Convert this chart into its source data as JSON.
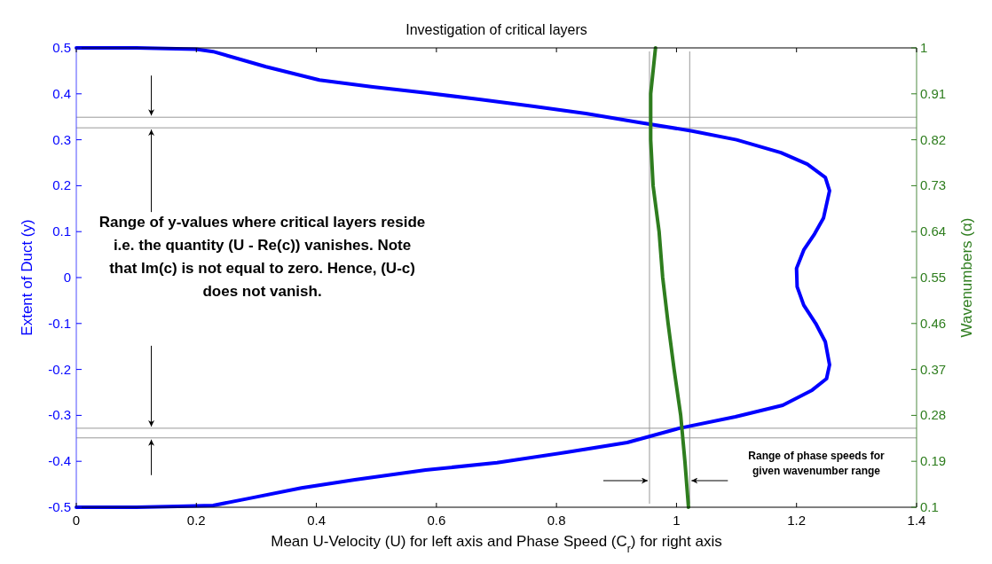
{
  "chart_data": {
    "type": "line",
    "title": "Investigation of critical layers",
    "xlabel": "Mean U-Velocity (U) for left axis and Phase Speed (C$_{r}$) for right axis",
    "ylabel": "Extent of Duct (y)",
    "y2label": "Wavenumbers (α)",
    "xlim": [
      0,
      1.4
    ],
    "xticks": [
      0,
      0.2,
      0.4,
      0.6,
      0.8,
      1,
      1.2,
      1.4
    ],
    "ylim": [
      -0.5,
      0.5
    ],
    "yticks": [
      -0.5,
      -0.4,
      -0.3,
      -0.2,
      -0.1,
      0,
      0.1,
      0.2,
      0.3,
      0.4,
      0.5
    ],
    "y2lim": [
      0.1,
      1
    ],
    "y2ticks": [
      0.1,
      0.19,
      0.28,
      0.37,
      0.46,
      0.55,
      0.64,
      0.73,
      0.82,
      0.91,
      1
    ],
    "series": [
      {
        "color": "#0000ff",
        "x": [
          0,
          0.1,
          0.2,
          0.228,
          0.316,
          0.405,
          0.494,
          0.583,
          0.671,
          0.76,
          0.849,
          0.937,
          1.026,
          1.1,
          1.174,
          1.218,
          1.248,
          1.255,
          1.245,
          1.23,
          1.212,
          1.2,
          1.201,
          1.212,
          1.232,
          1.248,
          1.255,
          1.25,
          1.226,
          1.177,
          1.098,
          1.005,
          0.918,
          0.819,
          0.701,
          0.582,
          0.464,
          0.375,
          0.287,
          0.228,
          0.169,
          0.1,
          0
        ],
        "values": [
          0.5,
          0.5,
          0.497,
          0.492,
          0.459,
          0.43,
          0.415,
          0.402,
          0.388,
          0.373,
          0.357,
          0.338,
          0.319,
          0.3,
          0.272,
          0.247,
          0.218,
          0.189,
          0.13,
          0.095,
          0.06,
          0.02,
          -0.02,
          -0.06,
          -0.1,
          -0.14,
          -0.19,
          -0.22,
          -0.245,
          -0.278,
          -0.303,
          -0.328,
          -0.359,
          -0.38,
          -0.403,
          -0.419,
          -0.44,
          -0.458,
          -0.481,
          -0.496,
          -0.498,
          -0.5,
          -0.5
        ]
      },
      {
        "color": "#2e7d1e",
        "axis": "y2",
        "x": [
          0.965,
          0.957,
          0.957,
          0.961,
          0.971,
          0.977,
          0.986,
          0.996,
          1.007,
          1.014,
          1.02
        ],
        "values": [
          1,
          0.91,
          0.82,
          0.73,
          0.64,
          0.55,
          0.46,
          0.37,
          0.28,
          0.19,
          0.1
        ]
      }
    ],
    "ref_lines": [
      {
        "axis": "y",
        "value": 0.349,
        "color": "#999999"
      },
      {
        "axis": "y",
        "value": 0.326,
        "color": "#999999"
      },
      {
        "axis": "y",
        "value": -0.328,
        "color": "#999999"
      },
      {
        "axis": "y",
        "value": -0.349,
        "color": "#999999"
      },
      {
        "axis": "x",
        "value": 0.955,
        "color": "#999999"
      },
      {
        "axis": "x",
        "value": 1.022,
        "color": "#999999"
      }
    ],
    "annotations": [
      {
        "text": "Range of y-values where critical layers reside i.e. the quantity (U - Re(c)) vanishes. Note that Im(c) is not equal to zero. Hence, (U-c) does not vanish.",
        "x": 0.125,
        "y": 0.326
      },
      "Range of phase speeds for given wavenumber range"
    ]
  }
}
